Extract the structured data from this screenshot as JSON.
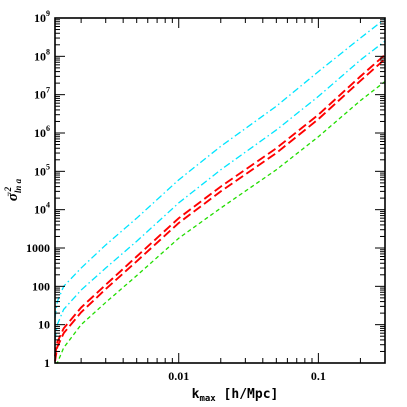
{
  "chart_data": {
    "type": "line",
    "xscale": "log",
    "yscale": "log",
    "xlim": [
      0.0013,
      0.3
    ],
    "ylim": [
      1,
      1000000000
    ],
    "grid": false,
    "xlabel": {
      "base": "k",
      "sub": "max",
      "unit": " [h/Mpc]"
    },
    "ylabel": {
      "base": "σ",
      "sub": "ln a",
      "sup": "−2"
    },
    "x_ticks": [
      {
        "value": 0.01,
        "label": "0.01"
      },
      {
        "value": 0.1,
        "label": "0.1"
      }
    ],
    "y_ticks": [
      {
        "value": 1,
        "label": "1",
        "exp": ""
      },
      {
        "value": 10,
        "label": "10",
        "exp": ""
      },
      {
        "value": 100,
        "label": "100",
        "exp": ""
      },
      {
        "value": 1000,
        "label": "1000",
        "exp": ""
      },
      {
        "value": 10000,
        "label": "10",
        "exp": "4"
      },
      {
        "value": 100000,
        "label": "10",
        "exp": "5"
      },
      {
        "value": 1000000,
        "label": "10",
        "exp": "6"
      },
      {
        "value": 10000000,
        "label": "10",
        "exp": "7"
      },
      {
        "value": 100000000,
        "label": "10",
        "exp": "8"
      },
      {
        "value": 1000000000,
        "label": "10",
        "exp": "9"
      }
    ],
    "series": [
      {
        "color": "#00e5ff",
        "dash": "7 3 1.5 3",
        "x": [
          0.0013,
          0.00135,
          0.0015,
          0.002,
          0.003,
          0.005,
          0.01,
          0.02,
          0.05,
          0.1,
          0.2,
          0.3
        ],
        "y": [
          15,
          40,
          100,
          300,
          1200,
          6000,
          60000,
          450000,
          5000000,
          40000000,
          300000000,
          950000000
        ]
      },
      {
        "color": "#00e5ff",
        "dash": "7 3 1.5 3",
        "x": [
          0.0013,
          0.00135,
          0.0015,
          0.002,
          0.003,
          0.005,
          0.01,
          0.02,
          0.05,
          0.1,
          0.2,
          0.3
        ],
        "y": [
          4,
          10,
          25,
          80,
          300,
          1500,
          15000,
          110000,
          1200000,
          9000000,
          80000000,
          250000000
        ]
      },
      {
        "color": "#ff0000",
        "dash": "9 4",
        "x": [
          0.0013,
          0.00135,
          0.0015,
          0.002,
          0.003,
          0.005,
          0.01,
          0.02,
          0.05,
          0.1,
          0.2,
          0.3
        ],
        "y": [
          1.5,
          3.5,
          8,
          28,
          110,
          600,
          6000,
          40000,
          400000,
          3000000,
          30000000,
          110000000
        ]
      },
      {
        "color": "#ff0000",
        "dash": "9 4",
        "x": [
          0.0013,
          0.00135,
          0.0015,
          0.002,
          0.003,
          0.005,
          0.01,
          0.02,
          0.05,
          0.1,
          0.2,
          0.3
        ],
        "y": [
          1.1,
          2.6,
          6,
          21,
          85,
          450,
          4500,
          30000,
          300000,
          2300000,
          23000000,
          85000000
        ]
      },
      {
        "color": "#22dd00",
        "dash": "4 3",
        "x": [
          0.0013,
          0.00135,
          0.0015,
          0.002,
          0.003,
          0.005,
          0.01,
          0.02,
          0.05,
          0.1,
          0.2,
          0.3
        ],
        "y": [
          1,
          1,
          2.5,
          10,
          38,
          190,
          1800,
          11000,
          110000,
          800000,
          7000000,
          22000000
        ]
      }
    ]
  }
}
